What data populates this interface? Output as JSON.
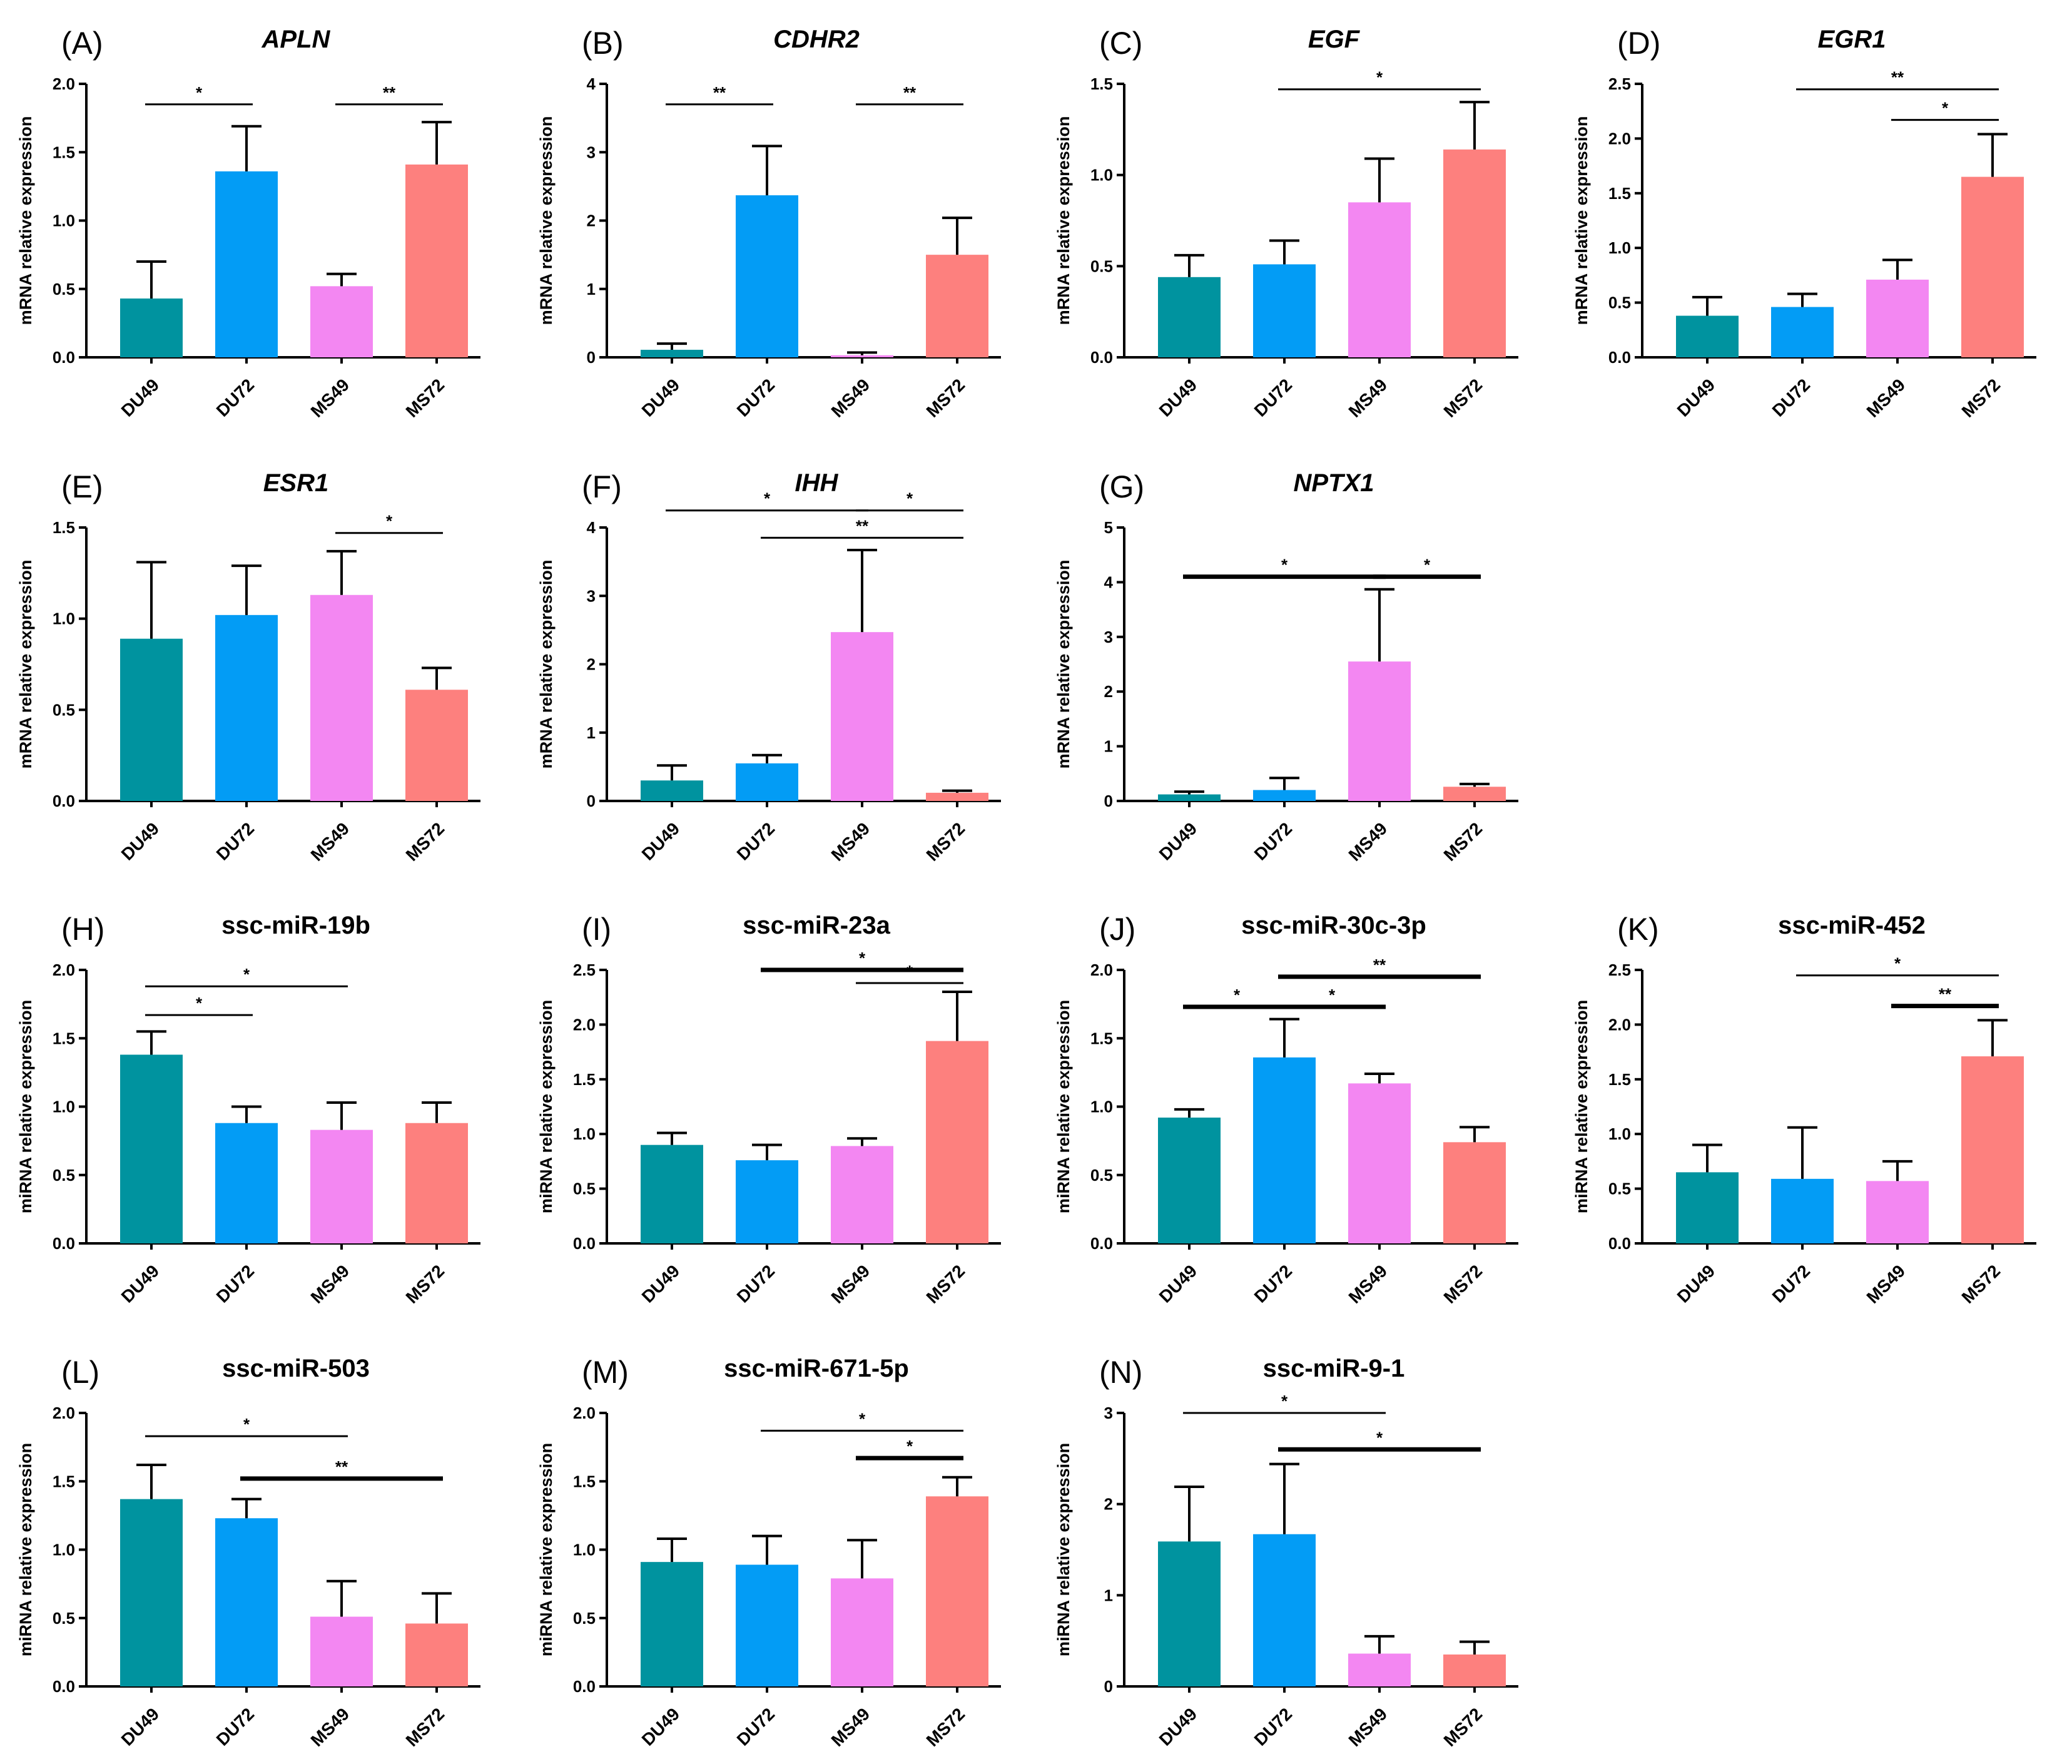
{
  "chart_data": [
    {
      "letter": "(A)",
      "title": "APLN",
      "italic": true,
      "type": "bar",
      "ylabel": "mRNA relative expression",
      "categories": [
        "DU49",
        "DU72",
        "MS49",
        "MS72"
      ],
      "ylim": [
        0,
        2.0
      ],
      "ticks": [
        "0.0",
        "0.5",
        "1.0",
        "1.5",
        "2.0"
      ],
      "values": [
        0.43,
        1.36,
        0.52,
        1.41
      ],
      "errors": [
        0.27,
        0.33,
        0.09,
        0.31
      ],
      "significance": [
        {
          "from": 0,
          "to": 1,
          "level": 1.85,
          "label": "*",
          "thick": false
        },
        {
          "from": 2,
          "to": 3,
          "level": 1.85,
          "label": "**",
          "thick": false
        }
      ]
    },
    {
      "letter": "(B)",
      "title": "CDHR2",
      "italic": true,
      "type": "bar",
      "ylabel": "mRNA relative expression",
      "categories": [
        "DU49",
        "DU72",
        "MS49",
        "MS72"
      ],
      "ylim": [
        0,
        4
      ],
      "ticks": [
        "0",
        "1",
        "2",
        "3",
        "4"
      ],
      "values": [
        0.11,
        2.37,
        0.03,
        1.5
      ],
      "errors": [
        0.09,
        0.72,
        0.04,
        0.54
      ],
      "significance": [
        {
          "from": 0,
          "to": 1,
          "level": 3.7,
          "label": "**",
          "thick": false
        },
        {
          "from": 2,
          "to": 3,
          "level": 3.7,
          "label": "**",
          "thick": false
        }
      ]
    },
    {
      "letter": "(C)",
      "title": "EGF",
      "italic": true,
      "type": "bar",
      "ylabel": "mRNA relative expression",
      "categories": [
        "DU49",
        "DU72",
        "MS49",
        "MS72"
      ],
      "ylim": [
        0,
        1.5
      ],
      "ticks": [
        "0.0",
        "0.5",
        "1.0",
        "1.5"
      ],
      "values": [
        0.44,
        0.51,
        0.85,
        1.14
      ],
      "errors": [
        0.12,
        0.13,
        0.24,
        0.26
      ],
      "significance": [
        {
          "from": 1,
          "to": 3,
          "level": 1.47,
          "label": "*",
          "thick": false
        }
      ]
    },
    {
      "letter": "(D)",
      "title": "EGR1",
      "italic": true,
      "type": "bar",
      "ylabel": "mRNA relative expression",
      "categories": [
        "DU49",
        "DU72",
        "MS49",
        "MS72"
      ],
      "ylim": [
        0,
        2.5
      ],
      "ticks": [
        "0.0",
        "0.5",
        "1.0",
        "1.5",
        "2.0",
        "2.5"
      ],
      "values": [
        0.38,
        0.46,
        0.71,
        1.65
      ],
      "errors": [
        0.17,
        0.12,
        0.18,
        0.39
      ],
      "significance": [
        {
          "from": 1,
          "to": 3,
          "level": 2.45,
          "label": "**",
          "thick": false
        },
        {
          "from": 2,
          "to": 3,
          "level": 2.17,
          "label": "*",
          "thick": false
        }
      ]
    },
    {
      "letter": "(E)",
      "title": "ESR1",
      "italic": true,
      "type": "bar",
      "ylabel": "mRNA relative expression",
      "categories": [
        "DU49",
        "DU72",
        "MS49",
        "MS72"
      ],
      "ylim": [
        0,
        1.5
      ],
      "ticks": [
        "0.0",
        "0.5",
        "1.0",
        "1.5"
      ],
      "values": [
        0.89,
        1.02,
        1.13,
        0.61
      ],
      "errors": [
        0.42,
        0.27,
        0.24,
        0.12
      ],
      "significance": [
        {
          "from": 2,
          "to": 3,
          "level": 1.47,
          "label": "*",
          "thick": false
        }
      ]
    },
    {
      "letter": "(F)",
      "title": "IHH",
      "italic": true,
      "type": "bar",
      "ylabel": "mRNA relative expression",
      "categories": [
        "DU49",
        "DU72",
        "MS49",
        "MS72"
      ],
      "ylim": [
        0,
        4
      ],
      "ticks": [
        "0",
        "1",
        "2",
        "3",
        "4"
      ],
      "values": [
        0.3,
        0.55,
        2.47,
        0.12
      ],
      "errors": [
        0.22,
        0.12,
        1.2,
        0.03
      ],
      "significance": [
        {
          "from": 0,
          "to": 2,
          "level": 4.25,
          "label": "*",
          "thick": false
        },
        {
          "from": 2,
          "to": 3,
          "level": 4.25,
          "label": "*",
          "thick": false
        },
        {
          "from": 1,
          "to": 3,
          "level": 3.85,
          "label": "**",
          "thick": false
        }
      ]
    },
    {
      "letter": "(G)",
      "title": "NPTX1",
      "italic": true,
      "type": "bar",
      "ylabel": "mRNA relative expression",
      "categories": [
        "DU49",
        "DU72",
        "MS49",
        "MS72"
      ],
      "ylim": [
        0,
        5
      ],
      "ticks": [
        "0",
        "1",
        "2",
        "3",
        "4",
        "5"
      ],
      "values": [
        0.12,
        0.2,
        2.55,
        0.26
      ],
      "errors": [
        0.05,
        0.22,
        1.32,
        0.05
      ],
      "significance": [
        {
          "from": 0,
          "to": 2,
          "level": 4.1,
          "label": "*",
          "thick": true
        },
        {
          "from": 2,
          "to": 3,
          "level": 4.1,
          "label": "*",
          "thick": true
        }
      ]
    },
    {
      "letter": "(H)",
      "title": "ssc-miR-19b",
      "italic": false,
      "type": "bar",
      "ylabel": "miRNA relative expression",
      "categories": [
        "DU49",
        "DU72",
        "MS49",
        "MS72"
      ],
      "ylim": [
        0,
        2.0
      ],
      "ticks": [
        "0.0",
        "0.5",
        "1.0",
        "1.5",
        "2.0"
      ],
      "values": [
        1.38,
        0.88,
        0.83,
        0.88
      ],
      "errors": [
        0.17,
        0.12,
        0.2,
        0.15
      ],
      "significance": [
        {
          "from": 0,
          "to": 2,
          "level": 1.88,
          "label": "*",
          "thick": false
        },
        {
          "from": 0,
          "to": 1,
          "level": 1.67,
          "label": "*",
          "thick": false
        }
      ]
    },
    {
      "letter": "(I)",
      "title": "ssc-miR-23a",
      "italic": false,
      "type": "bar",
      "ylabel": "miRNA relative expression",
      "categories": [
        "DU49",
        "DU72",
        "MS49",
        "MS72"
      ],
      "ylim": [
        0,
        2.5
      ],
      "ticks": [
        "0.0",
        "0.5",
        "1.0",
        "1.5",
        "2.0",
        "2.5"
      ],
      "values": [
        0.9,
        0.76,
        0.89,
        1.85
      ],
      "errors": [
        0.11,
        0.14,
        0.07,
        0.45
      ],
      "significance": [
        {
          "from": 1,
          "to": 3,
          "level": 2.5,
          "label": "*",
          "thick": true
        },
        {
          "from": 2,
          "to": 3,
          "level": 2.38,
          "label": "*",
          "thick": false
        }
      ]
    },
    {
      "letter": "(J)",
      "title": "ssc-miR-30c-3p",
      "italic": false,
      "type": "bar",
      "ylabel": "miRNA relative expression",
      "categories": [
        "DU49",
        "DU72",
        "MS49",
        "MS72"
      ],
      "ylim": [
        0,
        2.0
      ],
      "ticks": [
        "0.0",
        "0.5",
        "1.0",
        "1.5",
        "2.0"
      ],
      "values": [
        0.92,
        1.36,
        1.17,
        0.74
      ],
      "errors": [
        0.06,
        0.28,
        0.07,
        0.11
      ],
      "significance": [
        {
          "from": 1,
          "to": 3,
          "level": 1.95,
          "label": "**",
          "thick": true
        },
        {
          "from": 0,
          "to": 1,
          "level": 1.73,
          "label": "*",
          "thick": true
        },
        {
          "from": 1,
          "to": 2,
          "level": 1.73,
          "label": "*",
          "thick": true
        }
      ]
    },
    {
      "letter": "(K)",
      "title": "ssc-miR-452",
      "italic": false,
      "type": "bar",
      "ylabel": "miRNA relative expression",
      "categories": [
        "DU49",
        "DU72",
        "MS49",
        "MS72"
      ],
      "ylim": [
        0,
        2.5
      ],
      "ticks": [
        "0.0",
        "0.5",
        "1.0",
        "1.5",
        "2.0",
        "2.5"
      ],
      "values": [
        0.65,
        0.59,
        0.57,
        1.71
      ],
      "errors": [
        0.25,
        0.47,
        0.18,
        0.33
      ],
      "significance": [
        {
          "from": 1,
          "to": 3,
          "level": 2.45,
          "label": "*",
          "thick": false
        },
        {
          "from": 2,
          "to": 3,
          "level": 2.17,
          "label": "**",
          "thick": true
        }
      ]
    },
    {
      "letter": "(L)",
      "title": "ssc-miR-503",
      "italic": false,
      "type": "bar",
      "ylabel": "miRNA relative expression",
      "categories": [
        "DU49",
        "DU72",
        "MS49",
        "MS72"
      ],
      "ylim": [
        0,
        2.0
      ],
      "ticks": [
        "0.0",
        "0.5",
        "1.0",
        "1.5",
        "2.0"
      ],
      "values": [
        1.37,
        1.23,
        0.51,
        0.46
      ],
      "errors": [
        0.25,
        0.14,
        0.26,
        0.22
      ],
      "significance": [
        {
          "from": 0,
          "to": 2,
          "level": 1.83,
          "label": "*",
          "thick": false
        },
        {
          "from": 1,
          "to": 3,
          "level": 1.52,
          "label": "**",
          "thick": true
        }
      ]
    },
    {
      "letter": "(M)",
      "title": "ssc-miR-671-5p",
      "italic": false,
      "type": "bar",
      "ylabel": "miRNA relative expression",
      "categories": [
        "DU49",
        "DU72",
        "MS49",
        "MS72"
      ],
      "ylim": [
        0,
        2.0
      ],
      "ticks": [
        "0.0",
        "0.5",
        "1.0",
        "1.5",
        "2.0"
      ],
      "values": [
        0.91,
        0.89,
        0.79,
        1.39
      ],
      "errors": [
        0.17,
        0.21,
        0.28,
        0.14
      ],
      "significance": [
        {
          "from": 1,
          "to": 3,
          "level": 1.87,
          "label": "*",
          "thick": false
        },
        {
          "from": 2,
          "to": 3,
          "level": 1.67,
          "label": "*",
          "thick": true
        }
      ]
    },
    {
      "letter": "(N)",
      "title": "ssc-miR-9-1",
      "italic": false,
      "type": "bar",
      "ylabel": "miRNA relative expression",
      "categories": [
        "DU49",
        "DU72",
        "MS49",
        "MS72"
      ],
      "ylim": [
        0,
        3
      ],
      "ticks": [
        "0",
        "1",
        "2",
        "3"
      ],
      "values": [
        1.59,
        1.67,
        0.36,
        0.35
      ],
      "errors": [
        0.6,
        0.77,
        0.19,
        0.14
      ],
      "significance": [
        {
          "from": 0,
          "to": 2,
          "level": 3.0,
          "label": "*",
          "thick": false
        },
        {
          "from": 1,
          "to": 3,
          "level": 2.6,
          "label": "*",
          "thick": true
        }
      ]
    }
  ],
  "colors": {
    "DU49": "#00939f",
    "DU72": "#039cf5",
    "MS49": "#f387f2",
    "MS72": "#fd807e"
  }
}
